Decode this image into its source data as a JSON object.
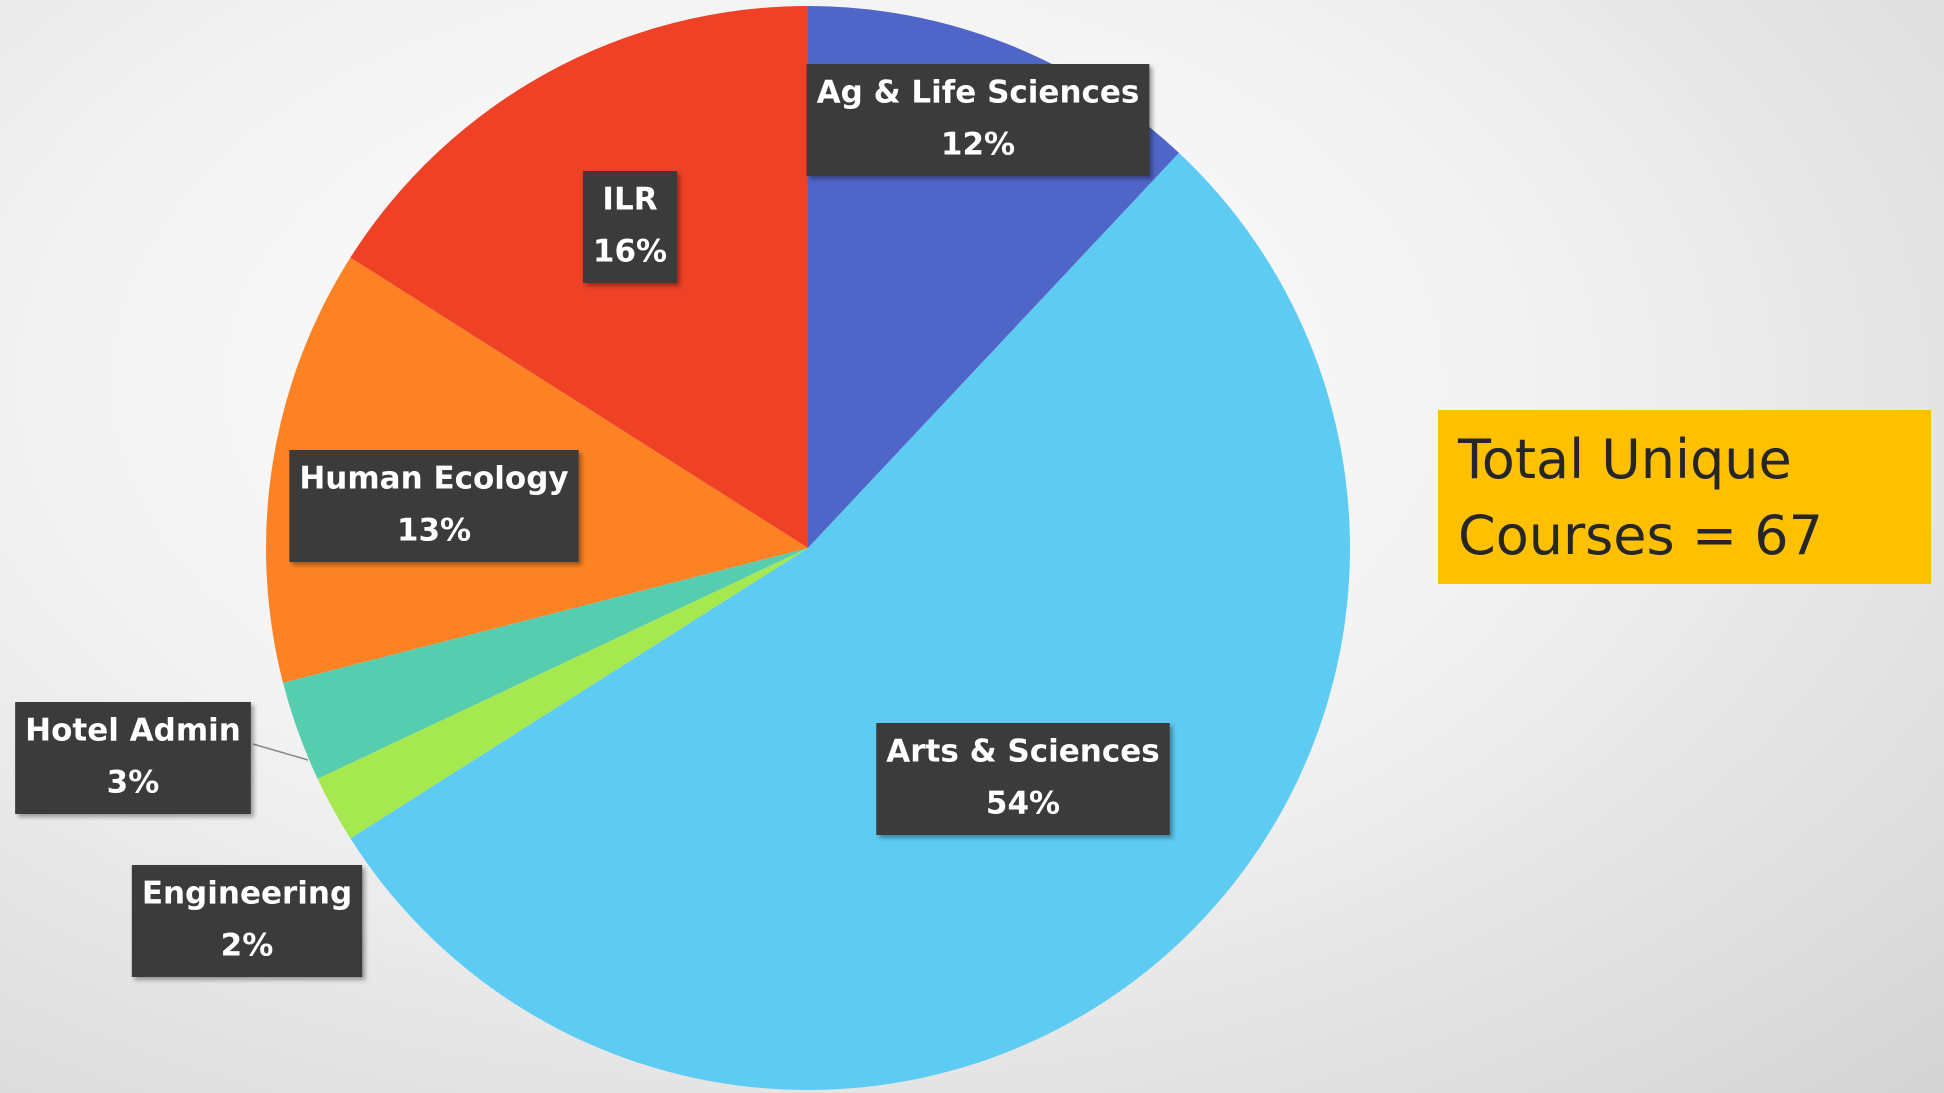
{
  "chart_data": {
    "type": "pie",
    "categories": [
      "Ag & Life Sciences",
      "Arts & Sciences",
      "Engineering",
      "Hotel Admin",
      "Human Ecology",
      "ILR"
    ],
    "values": [
      12,
      54,
      2,
      3,
      13,
      16
    ],
    "value_labels": [
      "12%",
      "54%",
      "2%",
      "3%",
      "13%",
      "16%"
    ],
    "colors": [
      "#4f66c8",
      "#5ecbf3",
      "#a5e84f",
      "#57cdb0",
      "#fc8224",
      "#ee4125"
    ],
    "annotation": "Total Unique Courses = 67"
  }
}
